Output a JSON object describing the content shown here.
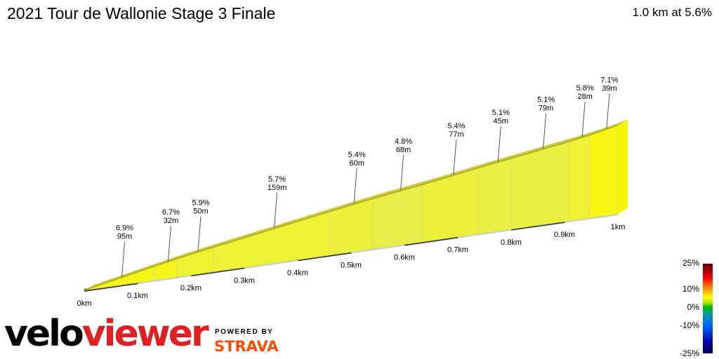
{
  "header": {
    "title": "2021 Tour de Wallonie Stage 3 Finale",
    "summary": "1.0 km at 5.6%"
  },
  "branding": {
    "velo": "velo",
    "viewer": "viewer",
    "powered_by": "POWERED BY",
    "strava": "STRAVA"
  },
  "gradient_legend": {
    "labels": [
      "25%",
      "10%",
      "0%",
      "-10%",
      "-25%"
    ]
  },
  "chart_data": {
    "type": "area",
    "title": "2021 Tour de Wallonie Stage 3 Finale",
    "subtitle": "1.0 km at 5.6%",
    "x_unit": "km",
    "xlim": [
      0,
      1.0
    ],
    "x_ticks": [
      "0km",
      "0.1km",
      "0.2km",
      "0.3km",
      "0.4km",
      "0.5km",
      "0.6km",
      "0.7km",
      "0.8km",
      "0.9km",
      "1km"
    ],
    "segments": [
      {
        "gradient_pct": 6.9,
        "length_m": 95,
        "gradient_label": "6.9%",
        "length_label": "95m"
      },
      {
        "gradient_pct": 6.7,
        "length_m": 32,
        "gradient_label": "6.7%",
        "length_label": "32m"
      },
      {
        "gradient_pct": 5.9,
        "length_m": 50,
        "gradient_label": "5.9%",
        "length_label": "50m"
      },
      {
        "gradient_pct": 5.7,
        "length_m": 159,
        "gradient_label": "5.7%",
        "length_label": "159m"
      },
      {
        "gradient_pct": 5.4,
        "length_m": 60,
        "gradient_label": "5.4%",
        "length_label": "60m"
      },
      {
        "gradient_pct": 4.8,
        "length_m": 68,
        "gradient_label": "4.8%",
        "length_label": "68m"
      },
      {
        "gradient_pct": 5.4,
        "length_m": 77,
        "gradient_label": "5.4%",
        "length_label": "77m"
      },
      {
        "gradient_pct": 5.1,
        "length_m": 45,
        "gradient_label": "5.1%",
        "length_label": "45m"
      },
      {
        "gradient_pct": 5.1,
        "length_m": 79,
        "gradient_label": "5.1%",
        "length_label": "79m"
      },
      {
        "gradient_pct": 5.8,
        "length_m": 28,
        "gradient_label": "5.8%",
        "length_label": "28m"
      },
      {
        "gradient_pct": 7.1,
        "length_m": 39,
        "gradient_label": "7.1%",
        "length_label": "39m"
      }
    ],
    "color_scale": {
      "min_pct": -25,
      "max_pct": 25
    }
  }
}
